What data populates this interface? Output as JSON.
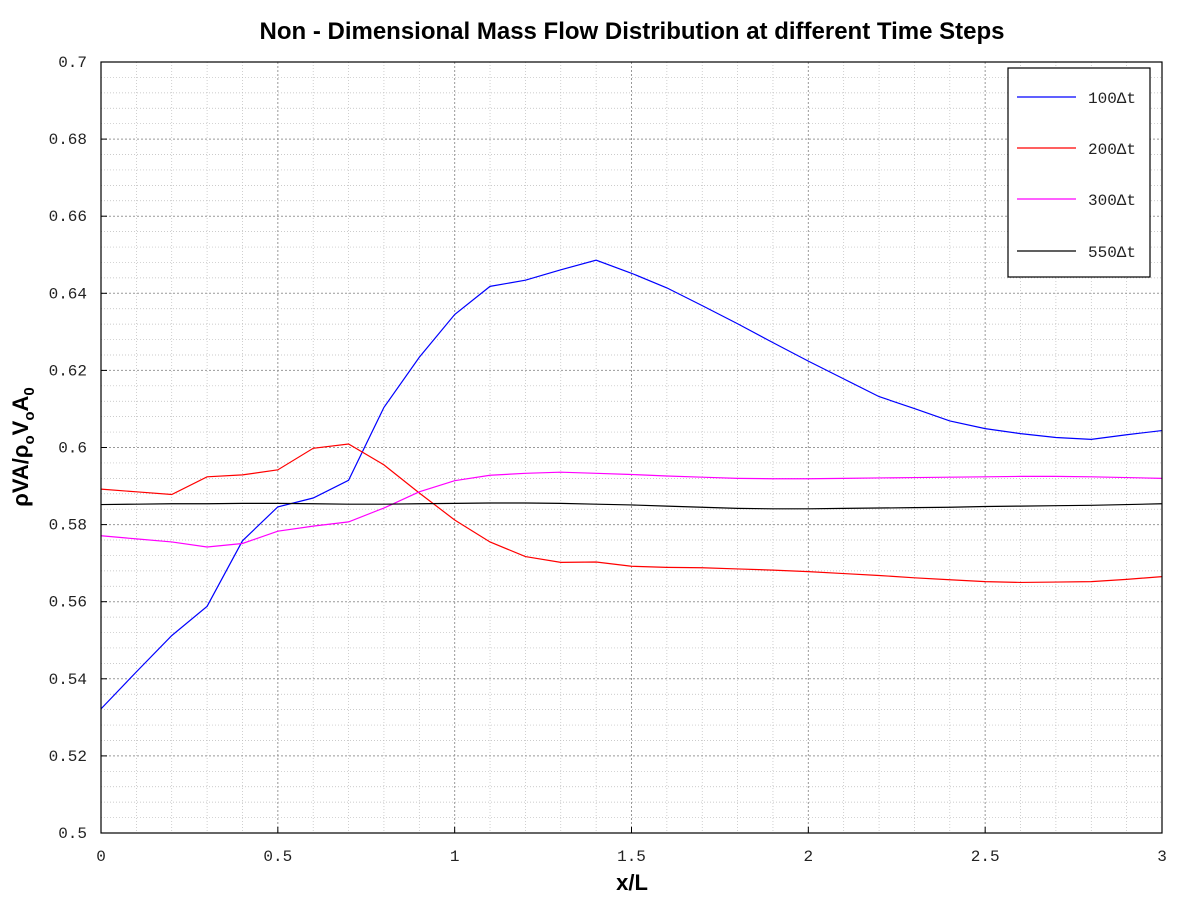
{
  "chart_data": {
    "type": "line",
    "title": "Non - Dimensional Mass Flow Distribution at different Time Steps",
    "xlabel": "x/L",
    "ylabel": {
      "rho1": "ρ",
      "va": "VA/",
      "rho2": "ρ",
      "o": "o",
      "v": "V",
      "o2": "o",
      "a": "A",
      "zero": "0"
    },
    "xlim": [
      0,
      3
    ],
    "ylim": [
      0.5,
      0.7
    ],
    "xticks": [
      "0",
      "0.5",
      "1",
      "1.5",
      "2",
      "2.5",
      "3"
    ],
    "xtick_values": [
      0,
      0.5,
      1,
      1.5,
      2,
      2.5,
      3
    ],
    "yticks": [
      "0.5",
      "0.52",
      "0.54",
      "0.56",
      "0.58",
      "0.6",
      "0.62",
      "0.64",
      "0.66",
      "0.68",
      "0.7"
    ],
    "ytick_values": [
      0.5,
      0.52,
      0.54,
      0.56,
      0.58,
      0.6,
      0.62,
      0.64,
      0.66,
      0.68,
      0.7
    ],
    "grid": true,
    "legend_position": "top-right",
    "x": [
      0,
      0.1,
      0.2,
      0.3,
      0.4,
      0.5,
      0.6,
      0.7,
      0.8,
      0.9,
      1.0,
      1.1,
      1.2,
      1.3,
      1.4,
      1.5,
      1.6,
      1.7,
      1.8,
      1.9,
      2.0,
      2.1,
      2.2,
      2.3,
      2.4,
      2.5,
      2.6,
      2.7,
      2.8,
      2.9,
      3.0
    ],
    "series": [
      {
        "name": "100Δt",
        "color": "#0000ff",
        "values": [
          0.5322,
          0.5418,
          0.5512,
          0.5588,
          0.5758,
          0.5846,
          0.5869,
          0.5915,
          0.6104,
          0.6234,
          0.6345,
          0.6418,
          0.6434,
          0.6461,
          0.6486,
          0.6452,
          0.6414,
          0.6368,
          0.6321,
          0.6272,
          0.6224,
          0.6178,
          0.6132,
          0.6101,
          0.6069,
          0.6049,
          0.6036,
          0.6026,
          0.6021,
          0.6033,
          0.6044
        ]
      },
      {
        "name": "200Δt",
        "color": "#ff0000",
        "values": [
          0.5892,
          0.5885,
          0.5878,
          0.5924,
          0.5929,
          0.5942,
          0.5998,
          0.6009,
          0.5955,
          0.5882,
          0.5812,
          0.5755,
          0.5717,
          0.5702,
          0.5703,
          0.5692,
          0.5689,
          0.5688,
          0.5685,
          0.5682,
          0.5678,
          0.5673,
          0.5668,
          0.5662,
          0.5657,
          0.5652,
          0.565,
          0.5651,
          0.5652,
          0.5658,
          0.5665
        ]
      },
      {
        "name": "300Δt",
        "color": "#ff00ff",
        "values": [
          0.5771,
          0.5763,
          0.5755,
          0.5742,
          0.5751,
          0.5783,
          0.5796,
          0.5807,
          0.5843,
          0.5885,
          0.5914,
          0.5928,
          0.5933,
          0.5936,
          0.5933,
          0.593,
          0.5926,
          0.5923,
          0.592,
          0.5919,
          0.5919,
          0.592,
          0.5921,
          0.5922,
          0.5923,
          0.5924,
          0.5925,
          0.5925,
          0.5924,
          0.5922,
          0.592
        ]
      },
      {
        "name": "550Δt",
        "color": "#000000",
        "values": [
          0.5852,
          0.5853,
          0.5854,
          0.5854,
          0.5855,
          0.5855,
          0.5854,
          0.5853,
          0.5853,
          0.5854,
          0.5855,
          0.5856,
          0.5856,
          0.5855,
          0.5853,
          0.5851,
          0.5848,
          0.5845,
          0.5842,
          0.5841,
          0.5841,
          0.5842,
          0.5843,
          0.5844,
          0.5845,
          0.5847,
          0.5848,
          0.5849,
          0.585,
          0.5852,
          0.5854
        ]
      }
    ]
  }
}
